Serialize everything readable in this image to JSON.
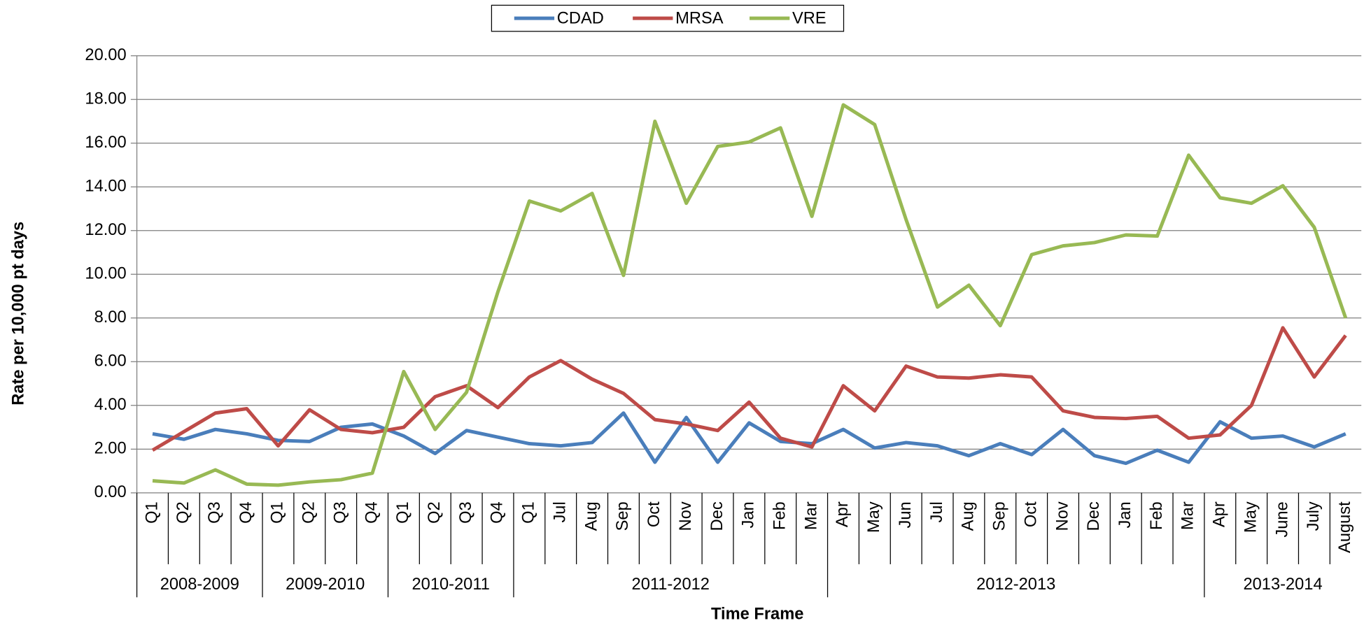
{
  "chart_data": {
    "type": "line",
    "y_label": "Rate per 10,000 pt days",
    "x_label": "Time Frame",
    "groups": [
      {
        "name": "2008-2009",
        "categories": [
          "Q1",
          "Q2",
          "Q3",
          "Q4"
        ]
      },
      {
        "name": "2009-2010",
        "categories": [
          "Q1",
          "Q2",
          "Q3",
          "Q4"
        ]
      },
      {
        "name": "2010-2011",
        "categories": [
          "Q1",
          "Q2",
          "Q3",
          "Q4"
        ]
      },
      {
        "name": "2011-2012",
        "categories": [
          "Q1",
          "Jul",
          "Aug",
          "Sep",
          "Oct",
          "Nov",
          "Dec",
          "Jan",
          "Feb",
          "Mar"
        ]
      },
      {
        "name": "2012-2013",
        "categories": [
          "Apr",
          "May",
          "Jun",
          "Jul",
          "Aug",
          "Sep",
          "Oct",
          "Nov",
          "Dec",
          "Jan",
          "Feb",
          "Mar"
        ]
      },
      {
        "name": "2013-2014",
        "categories": [
          "Apr",
          "May",
          "June",
          "July",
          "August"
        ]
      }
    ],
    "series": [
      {
        "name": "CDAD",
        "color": "#4a7ebb",
        "values": [
          2.7,
          2.45,
          2.9,
          2.7,
          2.4,
          2.35,
          3.0,
          3.15,
          2.6,
          1.8,
          2.85,
          2.55,
          2.25,
          2.15,
          2.3,
          3.65,
          1.4,
          3.45,
          1.4,
          3.2,
          2.35,
          2.25,
          2.9,
          2.05,
          2.3,
          2.15,
          1.7,
          2.25,
          1.75,
          2.9,
          1.7,
          1.35,
          1.95,
          1.4,
          3.25,
          2.5,
          2.6,
          2.1,
          2.7
        ]
      },
      {
        "name": "MRSA",
        "color": "#be4b48",
        "values": [
          1.95,
          2.8,
          3.65,
          3.85,
          2.15,
          3.8,
          2.9,
          2.75,
          3.0,
          4.4,
          4.9,
          3.9,
          5.3,
          6.05,
          5.2,
          4.55,
          3.35,
          3.15,
          2.85,
          4.15,
          2.5,
          2.1,
          4.9,
          3.75,
          5.8,
          5.3,
          5.25,
          5.4,
          5.3,
          3.75,
          3.45,
          3.4,
          3.5,
          2.5,
          2.65,
          4.0,
          7.55,
          5.3,
          7.2
        ]
      },
      {
        "name": "VRE",
        "color": "#98b954",
        "values": [
          0.55,
          0.45,
          1.05,
          0.4,
          0.35,
          0.5,
          0.6,
          0.9,
          5.55,
          2.9,
          4.6,
          9.2,
          13.35,
          12.9,
          13.7,
          9.95,
          17.0,
          13.25,
          15.85,
          16.05,
          16.7,
          12.65,
          17.75,
          16.85,
          12.5,
          8.5,
          9.5,
          7.65,
          10.9,
          11.3,
          11.45,
          11.8,
          11.75,
          15.45,
          13.5,
          13.25,
          14.05,
          12.15,
          8.0
        ]
      }
    ],
    "ylim": [
      0,
      20
    ],
    "yticks": [
      {
        "value": 0,
        "label": "0.00"
      },
      {
        "value": 2,
        "label": "2.00"
      },
      {
        "value": 4,
        "label": "4.00"
      },
      {
        "value": 6,
        "label": "6.00"
      },
      {
        "value": 8,
        "label": "8.00"
      },
      {
        "value": 10,
        "label": "10.00"
      },
      {
        "value": 12,
        "label": "12.00"
      },
      {
        "value": 14,
        "label": "14.00"
      },
      {
        "value": 16,
        "label": "16.00"
      },
      {
        "value": 18,
        "label": "18.00"
      },
      {
        "value": 20,
        "label": "20.00"
      }
    ],
    "grid": true,
    "legend": "top"
  }
}
